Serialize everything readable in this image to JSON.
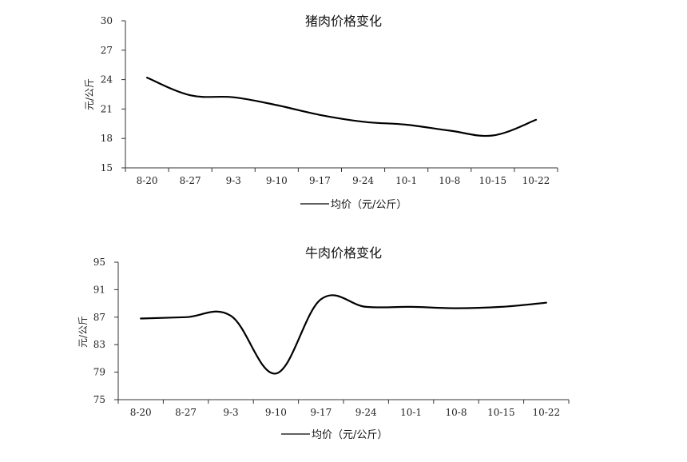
{
  "chart_data": [
    {
      "type": "line",
      "title": "猪肉价格变化",
      "ylabel": "元/公斤",
      "xlabel": "",
      "categories": [
        "8-20",
        "8-27",
        "9-3",
        "9-10",
        "9-17",
        "9-24",
        "10-1",
        "10-8",
        "10-15",
        "10-22"
      ],
      "yticks": [
        15,
        18,
        21,
        24,
        27,
        30
      ],
      "ylim": [
        15,
        30
      ],
      "grid": false,
      "legend_position": "bottom",
      "series": [
        {
          "name": "均价（元/公斤）",
          "values": [
            24.2,
            22.4,
            22.2,
            21.4,
            20.4,
            19.7,
            19.4,
            18.8,
            18.3,
            19.9
          ]
        }
      ]
    },
    {
      "type": "line",
      "title": "牛肉价格变化",
      "ylabel": "元/公斤",
      "xlabel": "",
      "categories": [
        "8-20",
        "8-27",
        "9-3",
        "9-10",
        "9-17",
        "9-24",
        "10-1",
        "10-8",
        "10-15",
        "10-22"
      ],
      "yticks": [
        75,
        79,
        83,
        87,
        91,
        95
      ],
      "ylim": [
        75,
        95
      ],
      "grid": false,
      "legend_position": "bottom",
      "series": [
        {
          "name": "均价（元/公斤）",
          "values": [
            86.8,
            87.0,
            87.2,
            78.8,
            89.6,
            88.5,
            88.5,
            88.3,
            88.5,
            89.1
          ]
        }
      ]
    }
  ]
}
